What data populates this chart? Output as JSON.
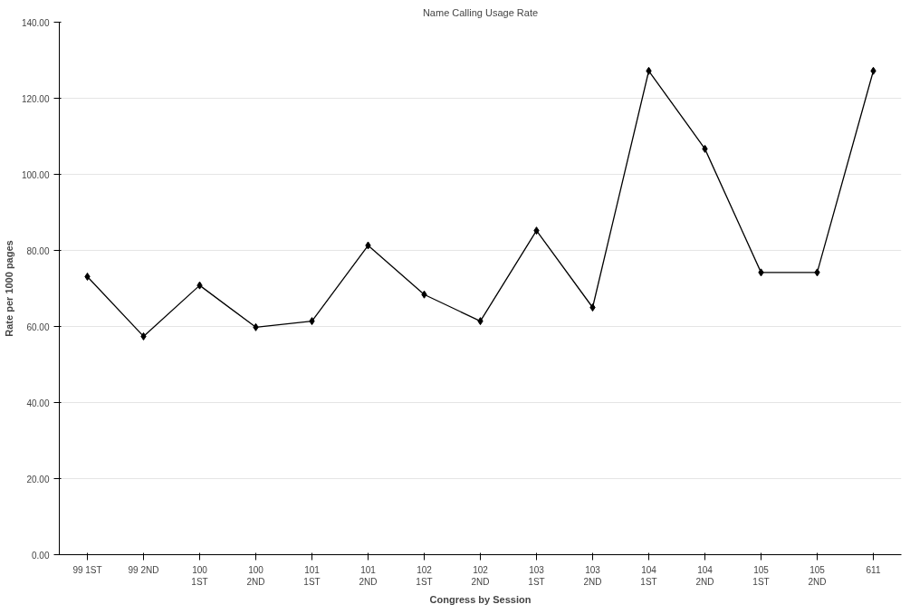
{
  "chart_data": {
    "type": "line",
    "title": "Name Calling Usage Rate",
    "xlabel": "Congress by Session",
    "ylabel": "Rate per 1000 pages",
    "categories": [
      "99 1ST",
      "99 2ND",
      "100\n1ST",
      "100\n2ND",
      "101\n1ST",
      "101\n2ND",
      "102\n1ST",
      "102\n2ND",
      "103\n1ST",
      "103\n2ND",
      "104\n1ST",
      "104\n2ND",
      "105\n1ST",
      "105\n2ND",
      "611"
    ],
    "series": [
      {
        "color": "#000000",
        "values": [
          73.1,
          57.4,
          70.8,
          59.8,
          61.4,
          81.3,
          68.4,
          61.4,
          85.2,
          65.0,
          127.2,
          106.7,
          74.2,
          74.2,
          127.2
        ]
      }
    ],
    "ylim": [
      0,
      140
    ],
    "yticks": [
      {
        "value": 0,
        "label": "0.00"
      },
      {
        "value": 20,
        "label": "20.00"
      },
      {
        "value": 40,
        "label": "40.00"
      },
      {
        "value": 60,
        "label": "60.00"
      },
      {
        "value": 80,
        "label": "80.00"
      },
      {
        "value": 100,
        "label": "100.00"
      },
      {
        "value": 120,
        "label": "120.00"
      },
      {
        "value": 140,
        "label": "140.00"
      }
    ],
    "grid": "y",
    "marker": "diamond",
    "line_style": "solid"
  }
}
